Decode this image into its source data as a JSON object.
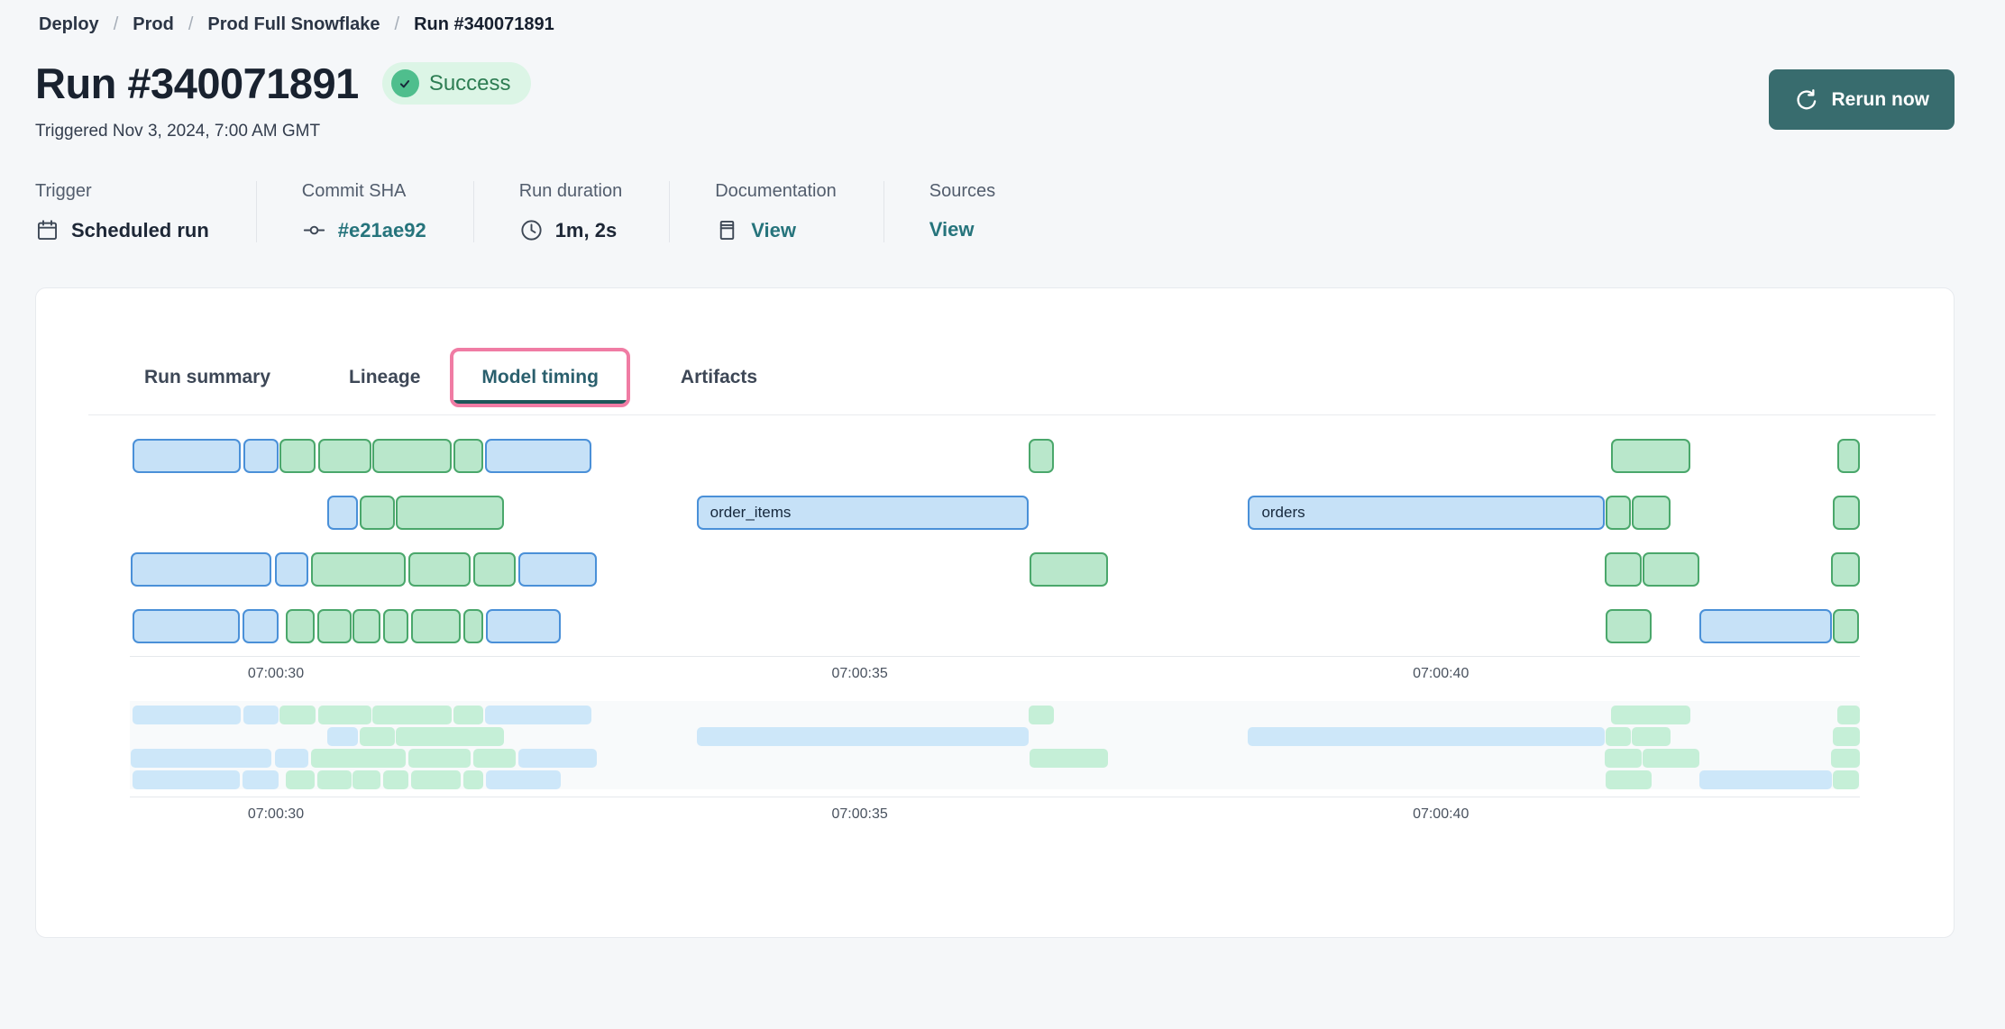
{
  "breadcrumb": {
    "separator": "/",
    "items": [
      {
        "label": "Deploy"
      },
      {
        "label": "Prod"
      },
      {
        "label": "Prod Full Snowflake"
      },
      {
        "label": "Run #340071891"
      }
    ]
  },
  "header": {
    "title": "Run #340071891",
    "status_badge": "Success",
    "triggered_text": "Triggered Nov 3, 2024, 7:00 AM GMT",
    "rerun_button": "Rerun now"
  },
  "metadata": {
    "items": [
      {
        "label": "Trigger",
        "value": "Scheduled run",
        "icon": "calendar-icon",
        "link": false
      },
      {
        "label": "Commit SHA",
        "value": "#e21ae92",
        "icon": "commit-icon",
        "link": true
      },
      {
        "label": "Run duration",
        "value": "1m, 2s",
        "icon": "clock-icon",
        "link": false
      },
      {
        "label": "Documentation",
        "value": "View",
        "icon": "docs-icon",
        "link": true
      },
      {
        "label": "Sources",
        "value": "View",
        "icon": null,
        "link": true
      }
    ]
  },
  "tabs": [
    {
      "label": "Run summary",
      "active": false
    },
    {
      "label": "Lineage",
      "active": false
    },
    {
      "label": "Model timing",
      "active": true
    },
    {
      "label": "Artifacts",
      "active": false
    }
  ],
  "colors": {
    "success_bg": "#dcf5e6",
    "success_icon": "#4fbe8d",
    "success_text": "#2d7d53",
    "link_teal": "#26747c",
    "rerun_bg": "#386c6e",
    "active_ring": "#f07ca4",
    "active_tab_text": "#2a5f6d",
    "bar_blue_fill": "#c6e1f7",
    "bar_blue_border": "#4a90d8",
    "bar_green_fill": "#b9e7cb",
    "bar_green_border": "#4aa76b",
    "mini_blue": "#cde7f9",
    "mini_green": "#c5efd7"
  },
  "chart_data": {
    "type": "gantt",
    "title": "Model timing",
    "x_ticks": [
      {
        "label": "07:00:30",
        "pos_pct": 8.44
      },
      {
        "label": "07:00:35",
        "pos_pct": 42.19
      },
      {
        "label": "07:00:40",
        "pos_pct": 75.78
      }
    ],
    "rows": [
      {
        "bars": [
          {
            "l": 0.16,
            "w": 6.25,
            "c": "blue"
          },
          {
            "l": 6.56,
            "w": 2.03,
            "c": "blue"
          },
          {
            "l": 8.65,
            "w": 2.08,
            "c": "green"
          },
          {
            "l": 10.89,
            "w": 3.07,
            "c": "green"
          },
          {
            "l": 14.01,
            "w": 4.58,
            "c": "green"
          },
          {
            "l": 18.7,
            "w": 1.72,
            "c": "green"
          },
          {
            "l": 20.52,
            "w": 6.15,
            "c": "blue"
          },
          {
            "l": 51.98,
            "w": 1.41,
            "c": "green"
          },
          {
            "l": 85.63,
            "w": 4.58,
            "c": "green"
          },
          {
            "l": 98.7,
            "w": 1.3,
            "c": "green"
          }
        ]
      },
      {
        "bars": [
          {
            "l": 11.41,
            "w": 1.77,
            "c": "blue"
          },
          {
            "l": 13.28,
            "w": 2.03,
            "c": "green"
          },
          {
            "l": 15.36,
            "w": 6.25,
            "c": "green"
          },
          {
            "l": 32.76,
            "w": 19.17,
            "c": "blue",
            "label": "order_items"
          },
          {
            "l": 64.64,
            "w": 20.63,
            "c": "blue",
            "label": "orders"
          },
          {
            "l": 85.31,
            "w": 1.46,
            "c": "green"
          },
          {
            "l": 86.82,
            "w": 2.24,
            "c": "green"
          },
          {
            "l": 98.44,
            "w": 1.56,
            "c": "green"
          }
        ]
      },
      {
        "bars": [
          {
            "l": 0.05,
            "w": 8.13,
            "c": "blue"
          },
          {
            "l": 8.39,
            "w": 1.93,
            "c": "blue"
          },
          {
            "l": 10.47,
            "w": 5.47,
            "c": "green"
          },
          {
            "l": 16.09,
            "w": 3.59,
            "c": "green"
          },
          {
            "l": 19.84,
            "w": 2.45,
            "c": "green"
          },
          {
            "l": 22.45,
            "w": 4.53,
            "c": "blue"
          },
          {
            "l": 52.03,
            "w": 4.53,
            "c": "green"
          },
          {
            "l": 85.26,
            "w": 2.14,
            "c": "green"
          },
          {
            "l": 87.45,
            "w": 3.28,
            "c": "green"
          },
          {
            "l": 98.33,
            "w": 1.67,
            "c": "green"
          }
        ]
      },
      {
        "bars": [
          {
            "l": 0.16,
            "w": 6.2,
            "c": "blue"
          },
          {
            "l": 6.51,
            "w": 2.08,
            "c": "blue"
          },
          {
            "l": 9.01,
            "w": 1.67,
            "c": "green"
          },
          {
            "l": 10.83,
            "w": 1.98,
            "c": "green"
          },
          {
            "l": 12.86,
            "w": 1.61,
            "c": "green"
          },
          {
            "l": 14.64,
            "w": 1.46,
            "c": "green"
          },
          {
            "l": 16.25,
            "w": 2.86,
            "c": "green"
          },
          {
            "l": 19.27,
            "w": 1.15,
            "c": "green"
          },
          {
            "l": 20.57,
            "w": 4.32,
            "c": "blue"
          },
          {
            "l": 85.31,
            "w": 2.66,
            "c": "green"
          },
          {
            "l": 90.73,
            "w": 7.66,
            "c": "blue"
          },
          {
            "l": 98.44,
            "w": 1.51,
            "c": "green"
          }
        ]
      }
    ],
    "minimap": {
      "mirrors_main_rows": true,
      "show_labels": false
    }
  }
}
